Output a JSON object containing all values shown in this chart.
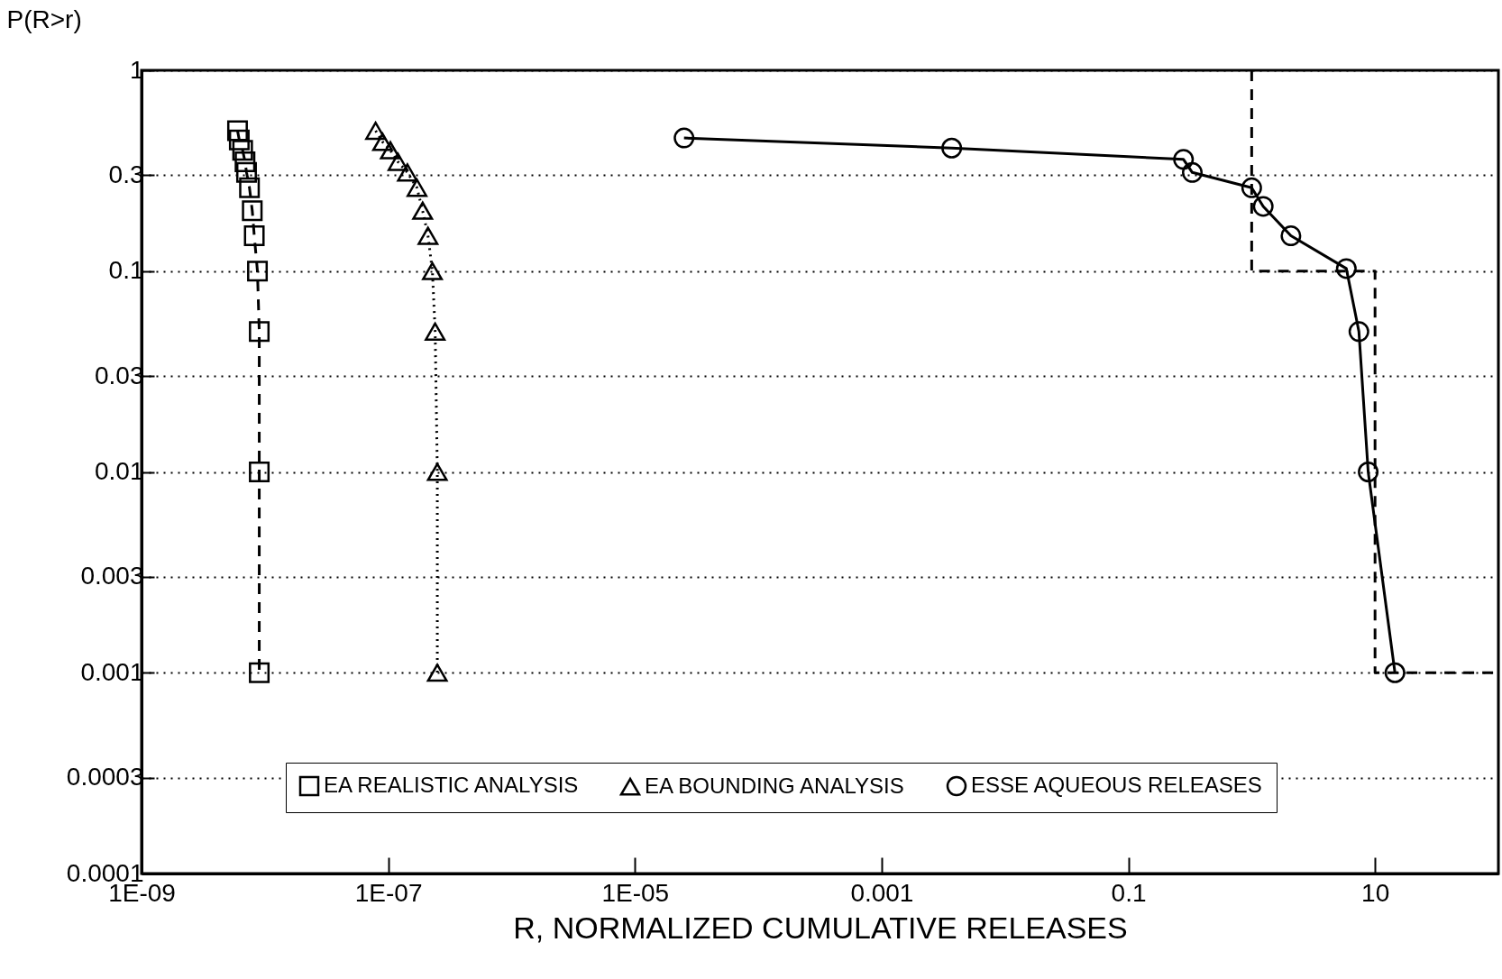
{
  "chart_data": {
    "type": "line",
    "xlabel": "R, NORMALIZED CUMULATIVE RELEASES",
    "ylabel": "P(R>r)",
    "log": "xy",
    "grid": "y",
    "legend": "bottom",
    "xlim": [
      1e-09,
      100
    ],
    "ylim": [
      0.0001,
      1
    ],
    "xticks": [
      {
        "value": 1e-09,
        "label": "1E-09"
      },
      {
        "value": 1e-07,
        "label": "1E-07"
      },
      {
        "value": 1e-05,
        "label": "1E-05"
      },
      0.001,
      0.1,
      10
    ],
    "yticks": [
      0.0001,
      0.0003,
      0.001,
      0.003,
      0.01,
      0.03,
      0.1,
      0.3,
      1
    ],
    "series": [
      {
        "name": "EA REALISTIC ANALYSIS",
        "color": "#000000",
        "marker": "square",
        "line_style": "dashed",
        "x": [
          6e-09,
          6.2e-09,
          6.6e-09,
          6.9e-09,
          7.1e-09,
          7.5e-09,
          7.9e-09,
          8.2e-09,
          8.7e-09,
          9e-09,
          9e-09,
          9e-09
        ],
        "values": [
          0.5,
          0.45,
          0.4,
          0.35,
          0.31,
          0.26,
          0.2,
          0.15,
          0.1,
          0.05,
          0.01,
          0.001
        ]
      },
      {
        "name": "EA BOUNDING ANALYSIS",
        "color": "#000000",
        "marker": "triangle",
        "line_style": "dotted",
        "x": [
          7.9e-08,
          9e-08,
          1.04e-07,
          1.2e-07,
          1.43e-07,
          1.71e-07,
          1.9e-07,
          2.1e-07,
          2.28e-07,
          2.4e-07,
          2.5e-07,
          2.5e-07
        ],
        "values": [
          0.5,
          0.44,
          0.4,
          0.35,
          0.31,
          0.26,
          0.2,
          0.15,
          0.1,
          0.05,
          0.01,
          0.001
        ]
      },
      {
        "name": "ESSE AQUEOUS RELEASES",
        "color": "#000000",
        "marker": "circle",
        "line_style": "solid",
        "x": [
          2.5e-05,
          0.0037,
          0.28,
          0.33,
          1.0,
          1.24,
          2.08,
          5.85,
          7.4,
          8.8,
          14.5
        ],
        "values": [
          0.46,
          0.41,
          0.36,
          0.31,
          0.26,
          0.21,
          0.15,
          0.103,
          0.05,
          0.01,
          0.001
        ]
      },
      {
        "type": "line",
        "color": "#000000",
        "marker": "none",
        "line_style": "dashed",
        "x": [
          1,
          1,
          10,
          10,
          100
        ],
        "values": [
          1,
          0.1,
          0.1,
          0.001,
          0.001
        ]
      }
    ]
  }
}
